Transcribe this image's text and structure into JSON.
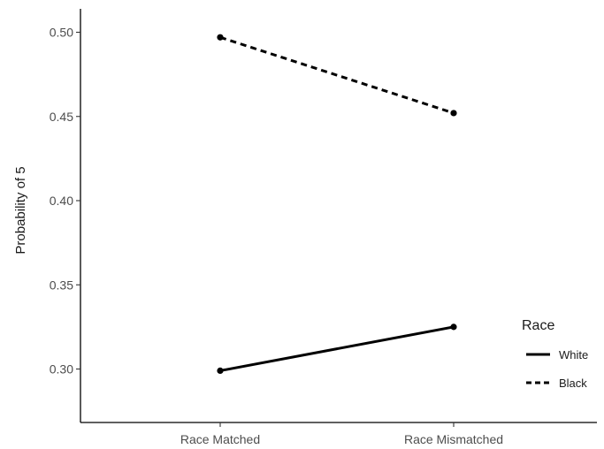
{
  "chart_data": {
    "type": "line",
    "title": "",
    "xlabel": "",
    "ylabel": "Probability of 5",
    "categories": [
      "Race Matched",
      "Race Mismatched"
    ],
    "ylim": [
      0.265,
      0.51
    ],
    "yticks": [
      0.3,
      0.35,
      0.4,
      0.45,
      0.5
    ],
    "ytick_labels": [
      "0.30",
      "0.35",
      "0.40",
      "0.45",
      "0.50"
    ],
    "grid": false,
    "legend": {
      "title": "Race",
      "position": "right",
      "entries": [
        {
          "name": "White",
          "linestyle": "solid"
        },
        {
          "name": "Black",
          "linestyle": "dashed"
        }
      ]
    },
    "series": [
      {
        "name": "White",
        "linestyle": "solid",
        "color": "#000000",
        "values": [
          0.299,
          0.325
        ]
      },
      {
        "name": "Black",
        "linestyle": "dashed",
        "color": "#000000",
        "values": [
          0.497,
          0.452
        ]
      }
    ]
  }
}
